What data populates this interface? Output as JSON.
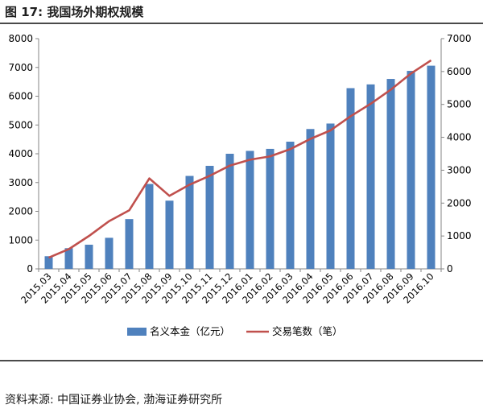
{
  "figure": {
    "title": "图 17: 我国场外期权规模",
    "source": "资料来源: 中国证券业协会, 渤海证券研究所"
  },
  "colors": {
    "bar": "#4F81BD",
    "line": "#C0504D",
    "axis": "#868686",
    "text": "#000000"
  },
  "chart_data": {
    "type": "bar",
    "title": "",
    "categories": [
      "2015.03",
      "2015.04",
      "2015.05",
      "2015.06",
      "2015.07",
      "2015.08",
      "2015.09",
      "2015.10",
      "2015.11",
      "2015.12",
      "2016.01",
      "2016.02",
      "2016.03",
      "2016.04",
      "2016.05",
      "2016.06",
      "2016.07",
      "2016.08",
      "2016.09",
      "2016.10"
    ],
    "series": [
      {
        "name": "名义本金（亿元）",
        "type": "bar",
        "axis": "left",
        "values": [
          440,
          720,
          840,
          1080,
          1730,
          2950,
          2370,
          3230,
          3580,
          4000,
          4100,
          4170,
          4420,
          4860,
          5050,
          6280,
          6410,
          6600,
          6880,
          7060
        ]
      },
      {
        "name": "交易笔数（笔）",
        "type": "line",
        "axis": "right",
        "values": [
          340,
          600,
          1000,
          1450,
          1780,
          2750,
          2220,
          2560,
          2830,
          3140,
          3320,
          3420,
          3640,
          3950,
          4210,
          4640,
          5020,
          5450,
          5940,
          6340
        ]
      }
    ],
    "y_left": {
      "range": [
        0,
        8000
      ],
      "ticks": [
        "0",
        "1000",
        "2000",
        "3000",
        "4000",
        "5000",
        "6000",
        "7000",
        "8000"
      ]
    },
    "y_right": {
      "range": [
        0,
        7000
      ],
      "ticks": [
        "0",
        "1000",
        "2000",
        "3000",
        "4000",
        "5000",
        "6000",
        "7000"
      ]
    },
    "grid": false,
    "legend": "bottom"
  }
}
